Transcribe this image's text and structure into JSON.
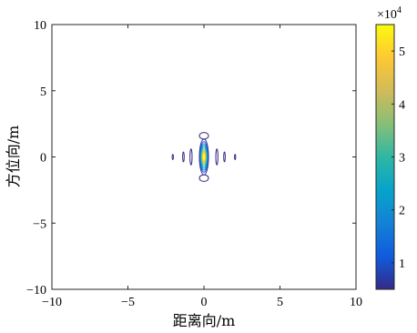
{
  "chart_data": {
    "type": "contour",
    "xlabel": "距离向/m",
    "ylabel": "方位向/m",
    "xlim": [
      -10,
      10
    ],
    "ylim": [
      -10,
      10
    ],
    "x_ticks": [
      "−10",
      "−5",
      "0",
      "5",
      "10"
    ],
    "y_ticks": [
      "10",
      "5",
      "0",
      "−5",
      "−10"
    ],
    "grid": false,
    "colorbar": {
      "multiplier": "×10",
      "exponent": "4",
      "range": [
        5000,
        55000
      ],
      "ticks": [
        "1",
        "2",
        "3",
        "4",
        "5"
      ],
      "tick_values": [
        1,
        2,
        3,
        4,
        5
      ],
      "colormap": "parula",
      "colors": [
        "#352a87",
        "#0f5cdd",
        "#1481d6",
        "#06a4ca",
        "#2eb7a4",
        "#87bf77",
        "#d1bb59",
        "#fec832",
        "#f9fb0e"
      ]
    },
    "contour_peak": {
      "x": 0,
      "y": 0,
      "value": 55000
    },
    "contour_levels": [
      {
        "value": 5000,
        "color": "#352a87",
        "rx": 0.3,
        "ry": 1.35
      },
      {
        "value": 10000,
        "color": "#0f5cdd",
        "rx": 0.26,
        "ry": 1.15
      },
      {
        "value": 15000,
        "color": "#1481d6",
        "rx": 0.23,
        "ry": 1.0
      },
      {
        "value": 20000,
        "color": "#06a4ca",
        "rx": 0.2,
        "ry": 0.86
      },
      {
        "value": 25000,
        "color": "#2eb7a4",
        "rx": 0.17,
        "ry": 0.72
      },
      {
        "value": 30000,
        "color": "#87bf77",
        "rx": 0.14,
        "ry": 0.58
      },
      {
        "value": 35000,
        "color": "#d1bb59",
        "rx": 0.11,
        "ry": 0.45
      },
      {
        "value": 40000,
        "color": "#fec832",
        "rx": 0.08,
        "ry": 0.33
      },
      {
        "value": 45000,
        "color": "#f9fb0e",
        "rx": 0.05,
        "ry": 0.21
      }
    ],
    "sidelobes": [
      {
        "x": 0,
        "y": 1.6,
        "rx": 0.3,
        "ry": 0.25,
        "color": "#352a87"
      },
      {
        "x": 0,
        "y": -1.6,
        "rx": 0.3,
        "ry": 0.25,
        "color": "#352a87"
      },
      {
        "x": 0.85,
        "y": 0,
        "rx": 0.07,
        "ry": 0.6,
        "color": "#352a87"
      },
      {
        "x": -0.85,
        "y": 0,
        "rx": 0.07,
        "ry": 0.6,
        "color": "#352a87"
      },
      {
        "x": 1.35,
        "y": 0,
        "rx": 0.05,
        "ry": 0.38,
        "color": "#352a87"
      },
      {
        "x": -1.35,
        "y": 0,
        "rx": 0.05,
        "ry": 0.38,
        "color": "#352a87"
      },
      {
        "x": 2.05,
        "y": 0,
        "rx": 0.04,
        "ry": 0.2,
        "color": "#352a87"
      },
      {
        "x": -2.05,
        "y": 0,
        "rx": 0.04,
        "ry": 0.2,
        "color": "#352a87"
      }
    ]
  }
}
